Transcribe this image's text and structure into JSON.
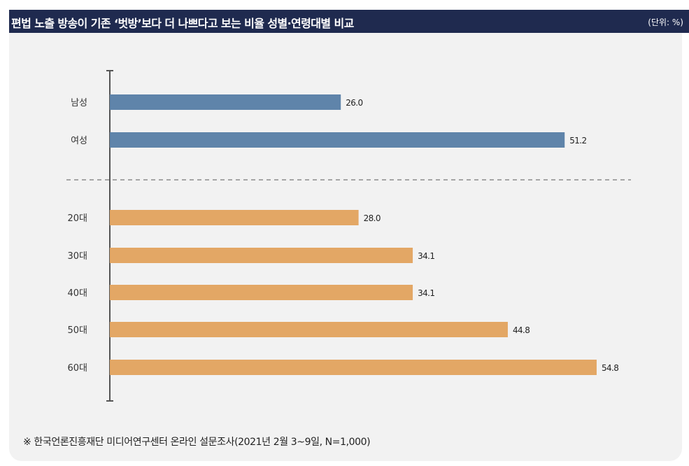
{
  "header": {
    "title": "편법 노출 방송이 기존 ‘벗방’보다 더 나쁘다고 보는 비율 성별·연령대별 비교",
    "unit": "(단위: %)"
  },
  "footer": {
    "source": "※ 한국언론진흥재단 미디어연구센터 온라인 설문조사(2021년 2월 3~9일, N=1,000)"
  },
  "colors": {
    "gender_bar": "#5f84aa",
    "age_bar": "#e3a765",
    "title_bg": "#1f2a4f",
    "panel_bg": "#f2f2f2",
    "axis": "#555555"
  },
  "chart_data": {
    "type": "bar",
    "orientation": "horizontal",
    "title": "편법 노출 방송이 기존 ‘벗방’보다 더 나쁘다고 보는 비율 성별·연령대별 비교",
    "unit": "(단위: %)",
    "xlim": [
      0,
      70
    ],
    "grid": false,
    "groups": [
      {
        "color": "#5f84aa",
        "categories": [
          "남성",
          "여성"
        ],
        "values": [
          26.0,
          51.2
        ],
        "labels": [
          "26.0",
          "51.2"
        ]
      },
      {
        "color": "#e3a765",
        "categories": [
          "20대",
          "30대",
          "40대",
          "50대",
          "60대"
        ],
        "values": [
          28.0,
          34.1,
          34.1,
          44.8,
          54.8
        ],
        "labels": [
          "28.0",
          "34.1",
          "34.1",
          "44.8",
          "54.8"
        ]
      }
    ]
  }
}
